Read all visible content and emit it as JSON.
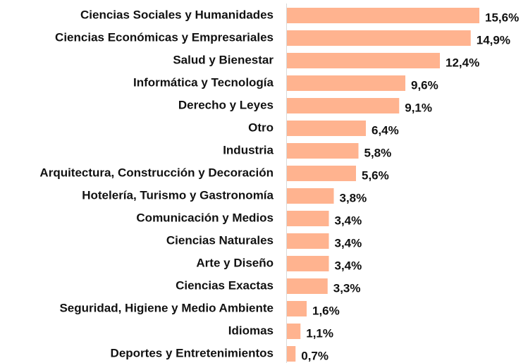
{
  "chart_data": {
    "type": "bar",
    "orientation": "horizontal",
    "categories": [
      "Ciencias Sociales y Humanidades",
      "Ciencias Económicas y Empresariales",
      "Salud y Bienestar",
      "Informática y Tecnología",
      "Derecho y Leyes",
      "Otro",
      "Industria",
      "Arquitectura, Construcción y Decoración",
      "Hotelería, Turismo y Gastronomía",
      "Comunicación y Medios",
      "Ciencias Naturales",
      "Arte y Diseño",
      "Ciencias Exactas",
      "Seguridad, Higiene y Medio Ambiente",
      "Idiomas",
      "Deportes y Entretenimientos"
    ],
    "values": [
      15.6,
      14.9,
      12.4,
      9.6,
      9.1,
      6.4,
      5.8,
      5.6,
      3.8,
      3.4,
      3.4,
      3.4,
      3.3,
      1.6,
      1.1,
      0.7
    ],
    "value_labels": [
      "15,6%",
      "14,9%",
      "12,4%",
      "9,6%",
      "9,1%",
      "6,4%",
      "5,8%",
      "5,6%",
      "3,8%",
      "3,4%",
      "3,4%",
      "3,4%",
      "3,3%",
      "1,6%",
      "1,1%",
      "0,7%"
    ],
    "color": "#ffb38f"
  }
}
